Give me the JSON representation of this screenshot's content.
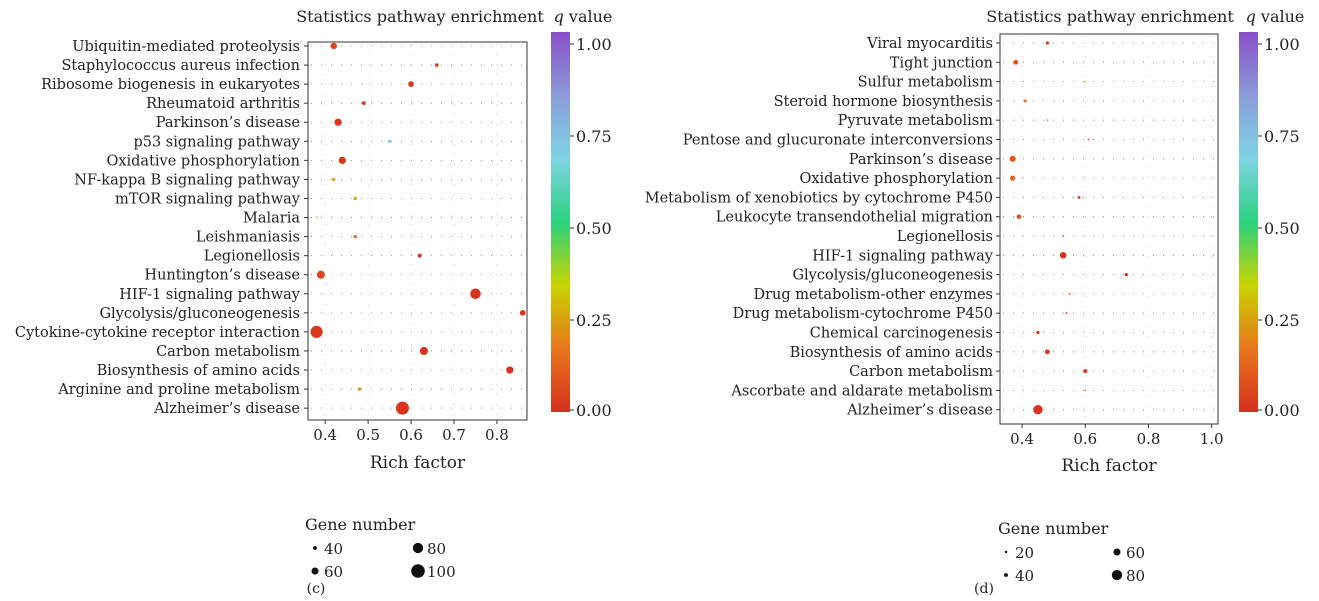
{
  "colorbar": {
    "stops": [
      "#d7301f",
      "#e8761c",
      "#c7d400",
      "#2bd17e",
      "#7fd3e4",
      "#8a9bd8",
      "#8a4fc9"
    ],
    "ticks": [
      "1.00",
      "0.75",
      "0.50",
      "0.25",
      "0.00"
    ]
  },
  "chart_data": [
    {
      "type": "scatter",
      "panel_label": "(c)",
      "title": "Statistics pathway enrichment",
      "colorbar_title_var": "q",
      "colorbar_title_rest": " value",
      "xlabel": "Rich factor",
      "xlim": [
        0.36,
        0.87
      ],
      "xticks": [
        0.4,
        0.5,
        0.6,
        0.7,
        0.8
      ],
      "xtick_labels": [
        "0.4",
        "0.5",
        "0.6",
        "0.7",
        "0.8"
      ],
      "size_legend_title": "Gene number",
      "size_legend": [
        {
          "label": "40",
          "value": 40
        },
        {
          "label": "60",
          "value": 60
        },
        {
          "label": "80",
          "value": 80
        },
        {
          "label": "100",
          "value": 100
        }
      ],
      "categories": [
        "Ubiquitin-mediated proteolysis",
        "Staphylococcus aureus infection",
        "Ribosome biogenesis in eukaryotes",
        "Rheumatoid arthritis",
        "Parkinson’s disease",
        "p53 signaling pathway",
        "Oxidative phosphorylation",
        "NF-kappa B signaling pathway",
        "mTOR signaling pathway",
        "Malaria",
        "Leishmaniasis",
        "Legionellosis",
        "Huntington’s disease",
        "HIF-1 signaling pathway",
        "Glycolysis/gluconeogenesis",
        "Cytokine-cytokine receptor interaction",
        "Carbon metabolism",
        "Biosynthesis of amino acids",
        "Arginine and proline metabolism",
        "Alzheimer’s disease"
      ],
      "points": [
        {
          "x": 0.42,
          "gene": 60,
          "q": 0.05
        },
        {
          "x": 0.66,
          "gene": 42,
          "q": 0.02
        },
        {
          "x": 0.6,
          "gene": 55,
          "q": 0.01
        },
        {
          "x": 0.49,
          "gene": 44,
          "q": 0.03
        },
        {
          "x": 0.43,
          "gene": 65,
          "q": 0.02
        },
        {
          "x": 0.55,
          "gene": 40,
          "q": 0.7
        },
        {
          "x": 0.44,
          "gene": 65,
          "q": 0.03
        },
        {
          "x": 0.42,
          "gene": 40,
          "q": 0.25
        },
        {
          "x": 0.47,
          "gene": 40,
          "q": 0.22
        },
        {
          "x": 0.38,
          "gene": 30,
          "q": 0.3
        },
        {
          "x": 0.47,
          "gene": 40,
          "q": 0.12
        },
        {
          "x": 0.62,
          "gene": 45,
          "q": 0.02
        },
        {
          "x": 0.39,
          "gene": 70,
          "q": 0.06
        },
        {
          "x": 0.75,
          "gene": 85,
          "q": 0.01
        },
        {
          "x": 0.86,
          "gene": 55,
          "q": 0.01
        },
        {
          "x": 0.38,
          "gene": 95,
          "q": 0.02
        },
        {
          "x": 0.63,
          "gene": 70,
          "q": 0.01
        },
        {
          "x": 0.83,
          "gene": 65,
          "q": 0.01
        },
        {
          "x": 0.48,
          "gene": 40,
          "q": 0.2
        },
        {
          "x": 0.58,
          "gene": 100,
          "q": 0.01
        }
      ]
    },
    {
      "type": "scatter",
      "panel_label": "(d)",
      "title": "Statistics pathway enrichment",
      "colorbar_title_var": "q",
      "colorbar_title_rest": " value",
      "xlabel": "Rich factor",
      "xlim": [
        0.33,
        1.02
      ],
      "xticks": [
        0.4,
        0.6,
        0.8,
        1.0
      ],
      "xtick_labels": [
        "0.4",
        "0.6",
        "0.8",
        "1.0"
      ],
      "size_legend_title": "Gene number",
      "size_legend": [
        {
          "label": "20",
          "value": 20
        },
        {
          "label": "40",
          "value": 40
        },
        {
          "label": "60",
          "value": 60
        },
        {
          "label": "80",
          "value": 80
        }
      ],
      "categories": [
        "Viral myocarditis",
        "Tight junction",
        "Sulfur metabolism",
        "Steroid hormone biosynthesis",
        "Pyruvate metabolism",
        "Pentose and glucuronate interconversions",
        "Parkinson’s disease",
        "Oxidative phosphorylation",
        "Metabolism of xenobiotics by cytochrome P450",
        "Leukocyte transendothelial migration",
        "Legionellosis",
        "HIF-1 signaling pathway",
        "Glycolysis/gluconeogenesis",
        "Drug metabolism-other enzymes",
        "Drug metabolism-cytochrome P450",
        "Chemical carcinogenesis",
        "Biosynthesis of amino acids",
        "Carbon metabolism",
        "Ascorbate and aldarate metabolism",
        "Alzheimer’s disease"
      ],
      "points": [
        {
          "x": 0.48,
          "gene": 40,
          "q": 0.02
        },
        {
          "x": 0.38,
          "gene": 50,
          "q": 0.09
        },
        {
          "x": 0.6,
          "gene": 12,
          "q": 0.3
        },
        {
          "x": 0.41,
          "gene": 38,
          "q": 0.1
        },
        {
          "x": 0.48,
          "gene": 15,
          "q": 0.2
        },
        {
          "x": 0.61,
          "gene": 30,
          "q": 0.03
        },
        {
          "x": 0.37,
          "gene": 58,
          "q": 0.1
        },
        {
          "x": 0.37,
          "gene": 52,
          "q": 0.12
        },
        {
          "x": 0.58,
          "gene": 38,
          "q": 0.02
        },
        {
          "x": 0.39,
          "gene": 48,
          "q": 0.08
        },
        {
          "x": 0.53,
          "gene": 30,
          "q": 0.02
        },
        {
          "x": 0.53,
          "gene": 60,
          "q": 0.01
        },
        {
          "x": 0.73,
          "gene": 40,
          "q": 0.02
        },
        {
          "x": 0.55,
          "gene": 30,
          "q": 0.02
        },
        {
          "x": 0.54,
          "gene": 32,
          "q": 0.02
        },
        {
          "x": 0.45,
          "gene": 40,
          "q": 0.03
        },
        {
          "x": 0.48,
          "gene": 50,
          "q": 0.02
        },
        {
          "x": 0.6,
          "gene": 45,
          "q": 0.02
        },
        {
          "x": 0.6,
          "gene": 14,
          "q": 0.25
        },
        {
          "x": 0.45,
          "gene": 78,
          "q": 0.01
        }
      ]
    }
  ]
}
